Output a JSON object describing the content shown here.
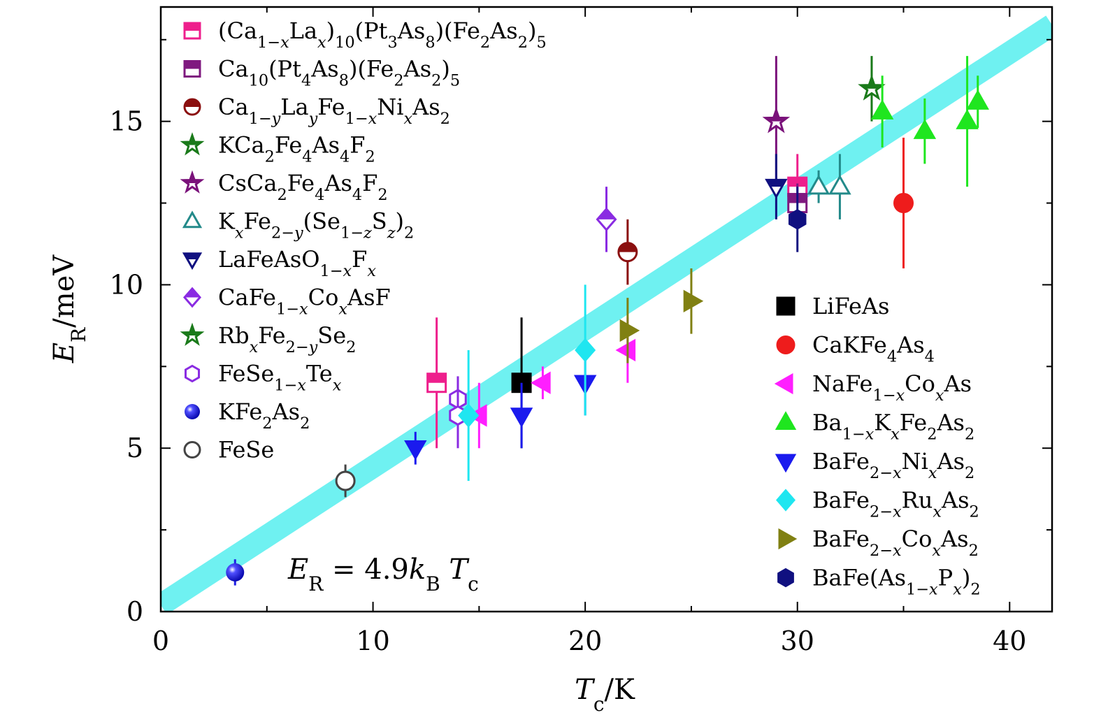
{
  "chart_data": {
    "type": "scatter",
    "title": "",
    "xlabel": "T_c/K",
    "ylabel": "E_R/meV",
    "xlim": [
      0,
      42
    ],
    "ylim": [
      0,
      18.5
    ],
    "x_ticks": [
      "0",
      "10",
      "20",
      "30",
      "40"
    ],
    "y_ticks": [
      "0",
      "5",
      "10",
      "15"
    ],
    "fit": {
      "label": "E_R = 4.9k_B T_c",
      "slope": 0.4226,
      "intercept": 0.2,
      "color": "#6ff1f1"
    },
    "series": [
      {
        "name": "(Ca1−xLax)10(Pt3As8)(Fe2As2)5",
        "legend": "left",
        "marker": "square",
        "fill": "half-open",
        "color": "#ee1f8c",
        "points": [
          {
            "x": 13,
            "y": 7,
            "yerr": 2
          },
          {
            "x": 30,
            "y": 13,
            "yerr": 1
          }
        ]
      },
      {
        "name": "Ca10(Pt4As8)(Fe2As2)5",
        "legend": "left",
        "marker": "square",
        "fill": "half-open",
        "color": "#7f197f",
        "points": [
          {
            "x": 30,
            "y": 12.5,
            "yerr": 0.6
          }
        ]
      },
      {
        "name": "Ca1−yLayFe1−xNixAs2",
        "legend": "left",
        "marker": "circle",
        "fill": "half-open",
        "color": "#8b0f0f",
        "points": [
          {
            "x": 22,
            "y": 11,
            "yerr": 1
          }
        ]
      },
      {
        "name": "KCa2Fe4As4F2",
        "legend": "left",
        "marker": "star",
        "fill": "half-open",
        "color": "#1a7a1a",
        "points": [
          {
            "x": 33.5,
            "y": 16,
            "yerr": 1
          }
        ]
      },
      {
        "name": "CsCa2Fe4As4F2",
        "legend": "left",
        "marker": "star",
        "fill": "half-open",
        "color": "#7a127a",
        "points": [
          {
            "x": 29,
            "y": 15,
            "yerr": 2
          }
        ]
      },
      {
        "name": "KxFe2−y(Se1−zSz)2",
        "legend": "left",
        "marker": "triangle-up",
        "fill": "open",
        "color": "#238a8a",
        "points": [
          {
            "x": 31,
            "y": 13,
            "yerr": 0.5
          },
          {
            "x": 32,
            "y": 13,
            "yerr": 1
          }
        ]
      },
      {
        "name": "LaFeAsO1−xFx",
        "legend": "left",
        "marker": "triangle-down",
        "fill": "half-open",
        "color": "#101080",
        "points": [
          {
            "x": 29,
            "y": 13,
            "yerr": 1
          }
        ]
      },
      {
        "name": "CaFe1−xCoxAsF",
        "legend": "left",
        "marker": "diamond",
        "fill": "half-open",
        "color": "#8a2be2",
        "points": [
          {
            "x": 21,
            "y": 12,
            "yerr": 1
          }
        ]
      },
      {
        "name": "RbxFe2−ySe2",
        "legend": "left",
        "marker": "star",
        "fill": "half-open",
        "color": "#1a7a1a",
        "points": []
      },
      {
        "name": "FeSe1−xTex",
        "legend": "left",
        "marker": "hexagon",
        "fill": "open",
        "color": "#8a2be2",
        "points": [
          {
            "x": 14,
            "y": 6.5,
            "yerr": 0.7
          },
          {
            "x": 14,
            "y": 6,
            "yerr": 1
          }
        ]
      },
      {
        "name": "KFe2As2",
        "legend": "left",
        "marker": "sphere",
        "fill": "filled",
        "color": "#1f1fe6",
        "points": [
          {
            "x": 3.5,
            "y": 1.2,
            "yerr": 0.4
          }
        ]
      },
      {
        "name": "FeSe",
        "legend": "left",
        "marker": "circle",
        "fill": "open",
        "color": "#444444",
        "points": [
          {
            "x": 8.7,
            "y": 4,
            "yerr": 0.5
          }
        ]
      },
      {
        "name": "LiFeAs",
        "legend": "right",
        "marker": "square",
        "fill": "filled",
        "color": "#000000",
        "points": [
          {
            "x": 17,
            "y": 7,
            "yerr": 2
          }
        ]
      },
      {
        "name": "CaKFe4As4",
        "legend": "right",
        "marker": "circle",
        "fill": "filled",
        "color": "#ee1c1c",
        "points": [
          {
            "x": 35,
            "y": 12.5,
            "yerr": 2
          }
        ]
      },
      {
        "name": "NaFe1−xCoxAs",
        "legend": "right",
        "marker": "triangle-left",
        "fill": "filled",
        "color": "#ff1fff",
        "points": [
          {
            "x": 15,
            "y": 6,
            "yerr": 1
          },
          {
            "x": 18,
            "y": 7,
            "yerr": 0.5
          },
          {
            "x": 22,
            "y": 8,
            "yerr": 1
          }
        ]
      },
      {
        "name": "Ba1−xKxFe2As2",
        "legend": "right",
        "marker": "triangle-up",
        "fill": "filled",
        "color": "#1fe61f",
        "points": [
          {
            "x": 34,
            "y": 15.3,
            "yerr": 1.1
          },
          {
            "x": 36,
            "y": 14.7,
            "yerr": 1
          },
          {
            "x": 38,
            "y": 15,
            "yerr": 2
          },
          {
            "x": 38.5,
            "y": 15.6,
            "yerr": 0.8
          }
        ]
      },
      {
        "name": "BaFe2−xNixAs2",
        "legend": "right",
        "marker": "triangle-down",
        "fill": "filled",
        "color": "#1a1aee",
        "points": [
          {
            "x": 12,
            "y": 5,
            "yerr": 0.5
          },
          {
            "x": 17,
            "y": 6,
            "yerr": 1
          },
          {
            "x": 20,
            "y": 7,
            "yerr": 1
          }
        ]
      },
      {
        "name": "BaFe2−xRuxAs2",
        "legend": "right",
        "marker": "diamond",
        "fill": "filled",
        "color": "#1fe6f0",
        "points": [
          {
            "x": 14.5,
            "y": 6,
            "yerr": 2
          },
          {
            "x": 20,
            "y": 8,
            "yerr": 2
          }
        ]
      },
      {
        "name": "BaFe2−xCoxAs2",
        "legend": "right",
        "marker": "triangle-right",
        "fill": "filled",
        "color": "#808012",
        "points": [
          {
            "x": 22,
            "y": 8.6,
            "yerr": 1
          },
          {
            "x": 25,
            "y": 9.5,
            "yerr": 1
          }
        ]
      },
      {
        "name": "BaFe(As1−xPx)2",
        "legend": "right",
        "marker": "hexagon",
        "fill": "filled",
        "color": "#101080",
        "points": [
          {
            "x": 30,
            "y": 12,
            "yerr": 1
          }
        ]
      }
    ]
  }
}
